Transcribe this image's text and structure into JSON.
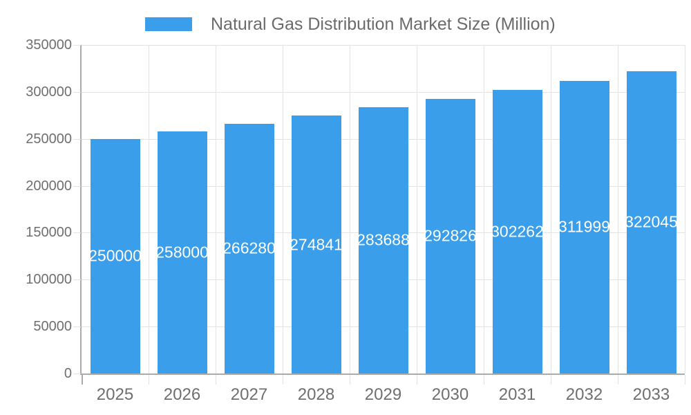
{
  "legend": {
    "label": "Natural Gas Distribution Market Size (Million)"
  },
  "colors": {
    "bar": "#3B9EEA",
    "grid_line": "#E3E3E3",
    "axis_line": "#ABABAB",
    "tick_text": "#6F6F6F",
    "legend_text": "#6B6B6B",
    "bar_label_text": "#FFFFFF",
    "background": "#FFFFFF"
  },
  "chart_data": {
    "type": "bar",
    "title": "Natural Gas Distribution Market Size (Million)",
    "legend_position": "top-center",
    "categories": [
      "2025",
      "2026",
      "2027",
      "2028",
      "2029",
      "2030",
      "2031",
      "2032",
      "2033"
    ],
    "series": [
      {
        "name": "Natural Gas Distribution Market Size (Million)",
        "values": [
          250000,
          258000,
          266280,
          274841,
          283688,
          292826,
          302262,
          311999,
          322045
        ]
      }
    ],
    "data_labels": {
      "position": "inside-middle",
      "color": "#FFFFFF",
      "values": [
        "250000",
        "258000",
        "266280",
        "274841",
        "283688",
        "292826",
        "302262",
        "311999",
        "322045"
      ]
    },
    "xlabel": "",
    "ylabel": "",
    "ylim": [
      0,
      350000
    ],
    "yticks": [
      0,
      50000,
      100000,
      150000,
      200000,
      250000,
      300000,
      350000
    ],
    "grid": true,
    "vertical_grid_at_category_boundaries": true
  }
}
